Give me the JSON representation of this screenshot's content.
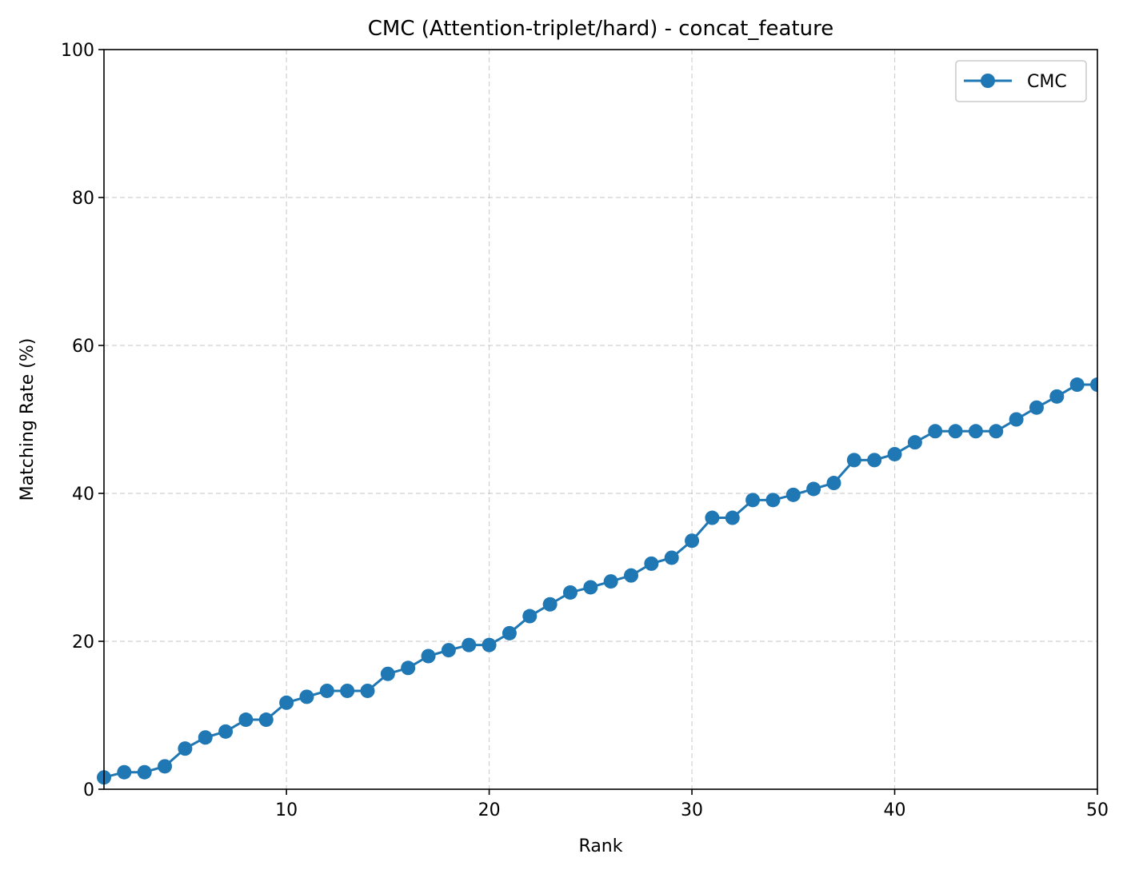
{
  "chart_data": {
    "type": "line",
    "title": "CMC (Attention-triplet/hard) - concat_feature",
    "xlabel": "Rank",
    "ylabel": "Matching Rate (%)",
    "xlim": [
      1,
      50
    ],
    "ylim": [
      0,
      100
    ],
    "xticks": [
      10,
      20,
      30,
      40,
      50
    ],
    "yticks": [
      0,
      20,
      40,
      60,
      80,
      100
    ],
    "grid": true,
    "legend_position": "top-right",
    "series": [
      {
        "name": "CMC",
        "color": "#1f77b4",
        "marker": "circle",
        "x": [
          1,
          2,
          3,
          4,
          5,
          6,
          7,
          8,
          9,
          10,
          11,
          12,
          13,
          14,
          15,
          16,
          17,
          18,
          19,
          20,
          21,
          22,
          23,
          24,
          25,
          26,
          27,
          28,
          29,
          30,
          31,
          32,
          33,
          34,
          35,
          36,
          37,
          38,
          39,
          40,
          41,
          42,
          43,
          44,
          45,
          46,
          47,
          48,
          49,
          50
        ],
        "values": [
          1.6,
          2.3,
          2.3,
          3.1,
          5.5,
          7.0,
          7.8,
          9.4,
          9.4,
          11.7,
          12.5,
          13.3,
          13.3,
          13.3,
          15.6,
          16.4,
          18.0,
          18.8,
          19.5,
          19.5,
          21.1,
          23.4,
          25.0,
          26.6,
          27.3,
          28.1,
          28.9,
          30.5,
          31.3,
          33.6,
          36.7,
          36.7,
          39.1,
          39.1,
          39.8,
          40.6,
          41.4,
          44.5,
          44.5,
          45.3,
          46.9,
          48.4,
          48.4,
          48.4,
          48.4,
          50.0,
          51.6,
          53.1,
          54.7,
          54.7
        ]
      }
    ]
  }
}
